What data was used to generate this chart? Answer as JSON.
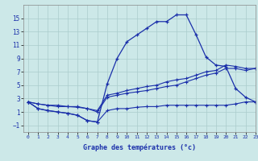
{
  "xlabel": "Graphe des températures (°c)",
  "bg": "#cce8e8",
  "grid_color": "#aacccc",
  "lc": "#1a2faa",
  "hours": [
    0,
    1,
    2,
    3,
    4,
    5,
    6,
    7,
    8,
    9,
    10,
    11,
    12,
    13,
    14,
    15,
    16,
    17,
    18,
    19,
    20,
    21,
    22,
    23
  ],
  "curve1": [
    2.5,
    1.5,
    1.2,
    1.0,
    0.8,
    0.5,
    -0.3,
    -0.5,
    5.2,
    9.0,
    11.5,
    12.5,
    13.5,
    14.5,
    14.5,
    15.5,
    15.5,
    12.5,
    9.2,
    8.0,
    7.8,
    4.5,
    3.2,
    2.5
  ],
  "curve2": [
    2.5,
    1.5,
    1.2,
    1.0,
    0.8,
    0.5,
    -0.3,
    -0.5,
    1.2,
    1.5,
    1.5,
    1.7,
    1.8,
    1.8,
    2.0,
    2.0,
    2.0,
    2.0,
    2.0,
    2.0,
    2.0,
    2.2,
    2.5,
    2.5
  ],
  "curve3": [
    2.5,
    2.2,
    2.0,
    2.0,
    1.8,
    1.8,
    1.5,
    1.2,
    3.5,
    3.8,
    4.2,
    4.5,
    4.8,
    5.0,
    5.5,
    5.8,
    6.0,
    6.5,
    7.0,
    7.2,
    8.0,
    7.8,
    7.5,
    7.5
  ],
  "curve4": [
    2.5,
    2.2,
    2.0,
    1.8,
    1.8,
    1.7,
    1.5,
    1.0,
    3.2,
    3.5,
    3.8,
    4.0,
    4.2,
    4.5,
    4.8,
    5.0,
    5.5,
    6.0,
    6.5,
    6.8,
    7.5,
    7.5,
    7.2,
    7.5
  ],
  "ylim": [
    -2,
    17
  ],
  "yticks": [
    -1,
    1,
    3,
    5,
    7,
    9,
    11,
    13,
    15
  ],
  "xlim": [
    -0.5,
    23
  ],
  "xticks": [
    0,
    1,
    2,
    3,
    4,
    5,
    6,
    7,
    8,
    9,
    10,
    11,
    12,
    13,
    14,
    15,
    16,
    17,
    18,
    19,
    20,
    21,
    22,
    23
  ]
}
